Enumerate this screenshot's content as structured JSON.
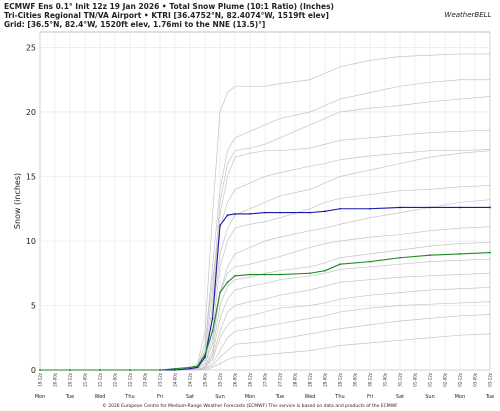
{
  "chart_data": {
    "type": "line",
    "title": "ECMWF Ens 0.1° Init 12z 19 Jan 2026 • Total Snow Plume (10:1 Ratio) (Inches)",
    "subtitle": "Tri-Cities Regional TN/VA Airport • KTRI [36.4752°N, 82.4074°W, 1519ft elev]",
    "grid_label": "Grid: [36.5°N, 82.4°W, 1520ft elev, 1.76mi to the NNE (13.5)°]",
    "logo": "WeatherBELL",
    "footer": "© 2026 European Centre for Medium-Range Weather Forecasts (ECMWF)  This service is based on data and products of the ECMWF",
    "ylabel": "Snow (inches)",
    "ylim": [
      0,
      26.2
    ],
    "yticks": [
      0,
      5,
      10,
      15,
      20,
      25
    ],
    "xlim": [
      0,
      360
    ],
    "xticks": [
      {
        "value": 0,
        "label": "19-12z"
      },
      {
        "value": 12,
        "label": "20-00z"
      },
      {
        "value": 24,
        "label": "20-12z"
      },
      {
        "value": 36,
        "label": "21-00z"
      },
      {
        "value": 48,
        "label": "21-12z"
      },
      {
        "value": 60,
        "label": "22-00z"
      },
      {
        "value": 72,
        "label": "22-12z"
      },
      {
        "value": 84,
        "label": "23-00z"
      },
      {
        "value": 96,
        "label": "23-12z"
      },
      {
        "value": 108,
        "label": "24-00z"
      },
      {
        "value": 120,
        "label": "24-12z"
      },
      {
        "value": 132,
        "label": "25-00z"
      },
      {
        "value": 144,
        "label": "25-12z"
      },
      {
        "value": 156,
        "label": "26-00z"
      },
      {
        "value": 168,
        "label": "26-12z"
      },
      {
        "value": 180,
        "label": "27-00z"
      },
      {
        "value": 192,
        "label": "27-12z"
      },
      {
        "value": 204,
        "label": "28-00z"
      },
      {
        "value": 216,
        "label": "28-12z"
      },
      {
        "value": 228,
        "label": "29-00z"
      },
      {
        "value": 240,
        "label": "29-12z"
      },
      {
        "value": 252,
        "label": "30-00z"
      },
      {
        "value": 264,
        "label": "30-12z"
      },
      {
        "value": 276,
        "label": "31-00z"
      },
      {
        "value": 288,
        "label": "31-12z"
      },
      {
        "value": 300,
        "label": "01-00z"
      },
      {
        "value": 312,
        "label": "01-12z"
      },
      {
        "value": 324,
        "label": "02-00z"
      },
      {
        "value": 336,
        "label": "02-12z"
      },
      {
        "value": 348,
        "label": "03-00z"
      },
      {
        "value": 360,
        "label": "03-12z"
      }
    ],
    "day_labels": [
      "Mon",
      "Tue",
      "Wed",
      "Thu",
      "Fri",
      "Sat",
      "Sun",
      "Mon",
      "Tue",
      "Wed",
      "Thu",
      "Fri",
      "Sat",
      "Sun",
      "Mon",
      "Tue"
    ],
    "grid": true,
    "x": [
      0,
      24,
      48,
      72,
      96,
      108,
      120,
      126,
      132,
      138,
      144,
      150,
      156,
      168,
      180,
      192,
      216,
      228,
      240,
      264,
      288,
      312,
      336,
      360
    ],
    "series": [
      {
        "color": "#c4c4c4",
        "values": [
          0,
          0,
          0,
          0,
          0,
          0,
          0.1,
          0.5,
          3,
          12,
          20,
          21.5,
          22,
          22,
          22,
          22.2,
          22.5,
          23,
          23.5,
          24,
          24.3,
          24.4,
          24.5,
          24.5
        ]
      },
      {
        "color": "#c4c4c4",
        "values": [
          0,
          0,
          0,
          0,
          0,
          0,
          0,
          0.3,
          2,
          8,
          14,
          17,
          18,
          18.5,
          19,
          19.5,
          20,
          20.5,
          21,
          21.5,
          22,
          22.3,
          22.5,
          22.5
        ]
      },
      {
        "color": "#c4c4c4",
        "values": [
          0,
          0,
          0,
          0,
          0,
          0,
          0,
          0.2,
          1.5,
          6,
          13,
          16,
          17,
          17.2,
          17.5,
          18,
          19,
          19.5,
          20,
          20.3,
          20.5,
          20.8,
          21,
          21.2
        ]
      },
      {
        "color": "#c4c4c4",
        "values": [
          0,
          0,
          0,
          0,
          0,
          0,
          0,
          0.2,
          1,
          5,
          12,
          15,
          16.5,
          16.8,
          17,
          17,
          17.2,
          17.5,
          17.8,
          18,
          18.2,
          18.4,
          18.5,
          18.6
        ]
      },
      {
        "color": "#c4c4c4",
        "values": [
          0,
          0,
          0,
          0,
          0,
          0,
          0.1,
          0.3,
          2,
          7,
          11,
          13,
          14,
          14.5,
          15,
          15.3,
          15.8,
          16,
          16.3,
          16.6,
          16.8,
          17,
          17,
          17.1
        ]
      },
      {
        "color": "#c4c4c4",
        "values": [
          0,
          0,
          0,
          0,
          0,
          0,
          0,
          0.1,
          1,
          4,
          9,
          11,
          12,
          12.5,
          13,
          13.5,
          14,
          14.5,
          15,
          15.5,
          16,
          16.5,
          16.8,
          17
        ]
      },
      {
        "color": "#c4c4c4",
        "values": [
          0,
          0,
          0,
          0,
          0,
          0,
          0,
          0.1,
          0.8,
          3,
          8,
          10,
          11,
          11.3,
          11.5,
          11.8,
          12.5,
          13,
          13.3,
          13.6,
          13.9,
          14,
          14.2,
          14.3
        ]
      },
      {
        "color": "#c4c4c4",
        "values": [
          0,
          0,
          0,
          0,
          0,
          0,
          0,
          0.1,
          0.5,
          2,
          6,
          8,
          9,
          9.5,
          10,
          10.3,
          10.8,
          11,
          11.3,
          11.8,
          12.2,
          12.6,
          13,
          13.2
        ]
      },
      {
        "color": "#c4c4c4",
        "values": [
          0,
          0,
          0,
          0,
          0,
          0,
          0,
          0.1,
          0.5,
          2.5,
          6,
          7.5,
          8,
          8.2,
          8.5,
          8.8,
          9.5,
          9.8,
          10,
          10.3,
          10.5,
          10.8,
          11,
          11.1
        ]
      },
      {
        "color": "#c4c4c4",
        "values": [
          0,
          0,
          0,
          0,
          0,
          0,
          0,
          0,
          0.3,
          1.5,
          5,
          6.5,
          7,
          7.2,
          7.5,
          7.7,
          8,
          8.3,
          8.7,
          9,
          9.3,
          9.6,
          9.8,
          9.9
        ]
      },
      {
        "color": "#c4c4c4",
        "values": [
          0,
          0,
          0,
          0,
          0,
          0,
          0,
          0,
          0.3,
          1.2,
          4,
          5.5,
          6.2,
          6.5,
          6.7,
          7,
          7.3,
          7.5,
          7.8,
          8,
          8.2,
          8.4,
          8.5,
          8.6
        ]
      },
      {
        "color": "#c4c4c4",
        "values": [
          0,
          0,
          0,
          0,
          0,
          0,
          0,
          0,
          0.2,
          1,
          3,
          4.5,
          5,
          5.3,
          5.5,
          5.8,
          6.2,
          6.5,
          6.8,
          7,
          7.2,
          7.3,
          7.4,
          7.5
        ]
      },
      {
        "color": "#c4c4c4",
        "values": [
          0,
          0,
          0,
          0,
          0,
          0,
          0,
          0,
          0.2,
          0.8,
          2.5,
          3.5,
          4,
          4.2,
          4.5,
          4.8,
          5,
          5.2,
          5.5,
          5.8,
          6,
          6.2,
          6.3,
          6.4
        ]
      },
      {
        "color": "#c4c4c4",
        "values": [
          0,
          0,
          0,
          0,
          0,
          0,
          0,
          0,
          0.1,
          0.5,
          1.5,
          2.5,
          3,
          3.2,
          3.4,
          3.6,
          4,
          4.2,
          4.5,
          4.8,
          5,
          5.1,
          5.2,
          5.3
        ]
      },
      {
        "color": "#c4c4c4",
        "values": [
          0,
          0,
          0,
          0,
          0,
          0,
          0,
          0,
          0.1,
          0.3,
          1,
          1.5,
          2,
          2.1,
          2.2,
          2.4,
          2.8,
          3,
          3.2,
          3.5,
          3.8,
          4,
          4.2,
          4.3
        ]
      },
      {
        "color": "#c4c4c4",
        "values": [
          0,
          0,
          0,
          0,
          0,
          0,
          0,
          0,
          0,
          0.2,
          0.5,
          0.8,
          1,
          1.1,
          1.2,
          1.3,
          1.5,
          1.7,
          1.9,
          2.1,
          2.3,
          2.5,
          2.7,
          2.8
        ]
      },
      {
        "color": "#1a1aa8",
        "markers": true,
        "values": [
          0,
          0,
          0,
          0,
          0,
          0,
          0.1,
          0.2,
          1,
          4,
          11.2,
          12,
          12.1,
          12.1,
          12.2,
          12.2,
          12.2,
          12.3,
          12.5,
          12.5,
          12.6,
          12.6,
          12.6,
          12.6
        ]
      },
      {
        "color": "#1f8a1f",
        "markers": true,
        "values": [
          0,
          0,
          0,
          0,
          0,
          0.1,
          0.2,
          0.3,
          1.2,
          3,
          6,
          6.8,
          7.3,
          7.4,
          7.4,
          7.4,
          7.5,
          7.7,
          8.2,
          8.4,
          8.7,
          8.9,
          9,
          9.1
        ]
      }
    ]
  }
}
